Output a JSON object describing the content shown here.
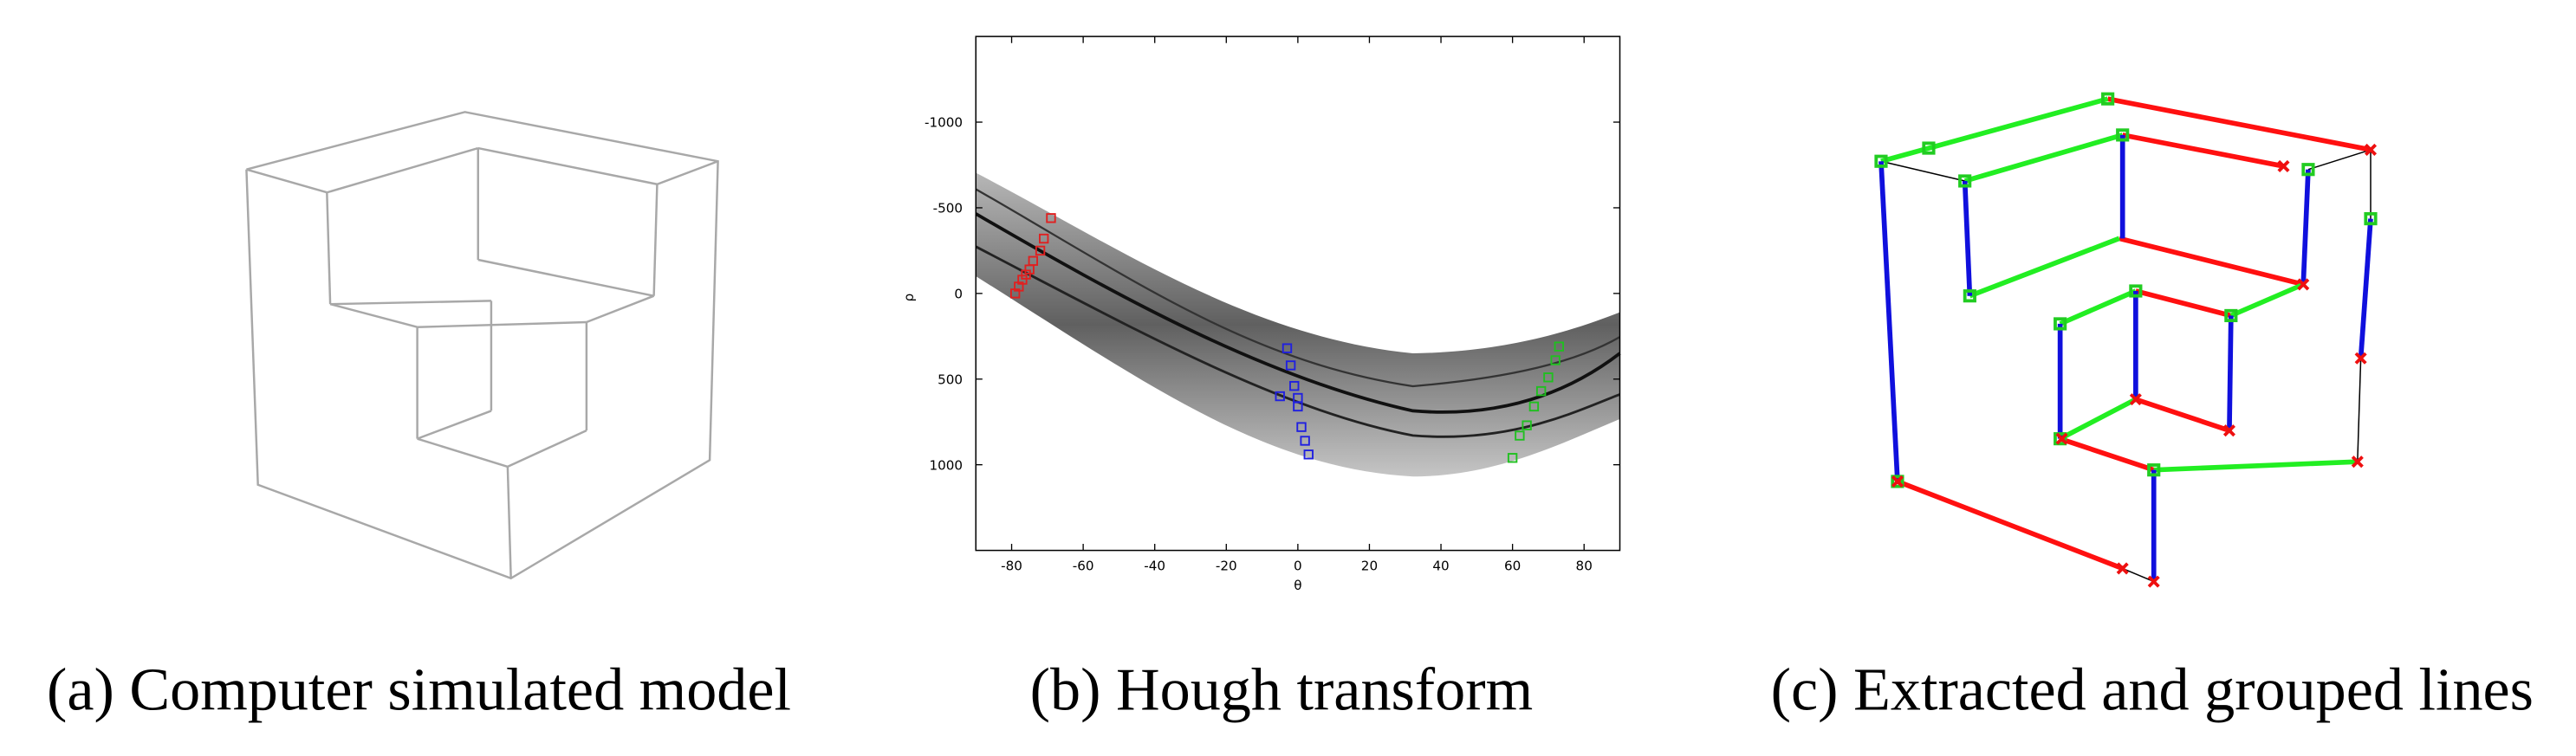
{
  "panels": [
    {
      "caption": "(a) Computer simulated model"
    },
    {
      "caption": "(b) Hough transform",
      "chart_data": {
        "type": "scatter",
        "xlabel": "θ",
        "ylabel": "ρ",
        "xlim": [
          -90,
          90
        ],
        "ylim": [
          -1500,
          1500
        ],
        "y_inverted": true,
        "xticks": [
          -80,
          -60,
          -40,
          -20,
          0,
          20,
          40,
          60,
          80
        ],
        "yticks": [
          -1000,
          -500,
          0,
          500,
          1000
        ],
        "series": [
          {
            "color": "#e02020",
            "x": [
              -69,
              -71,
              -72,
              -74,
              -75,
              -76,
              -77,
              -78,
              -79
            ],
            "values": [
              -440,
              -320,
              -250,
              -190,
              -140,
              -110,
              -80,
              -40,
              0
            ]
          },
          {
            "color": "#2020e0",
            "x": [
              -3,
              -2,
              -1,
              -5,
              0,
              0,
              1,
              2,
              3
            ],
            "values": [
              320,
              420,
              540,
              600,
              610,
              660,
              780,
              860,
              940
            ]
          },
          {
            "color": "#20c020",
            "x": [
              73,
              72,
              70,
              68,
              66,
              64,
              62,
              60
            ],
            "values": [
              310,
              390,
              490,
              570,
              660,
              770,
              830,
              960
            ]
          }
        ]
      }
    },
    {
      "caption": "(c) Extracted and grouped lines"
    }
  ]
}
